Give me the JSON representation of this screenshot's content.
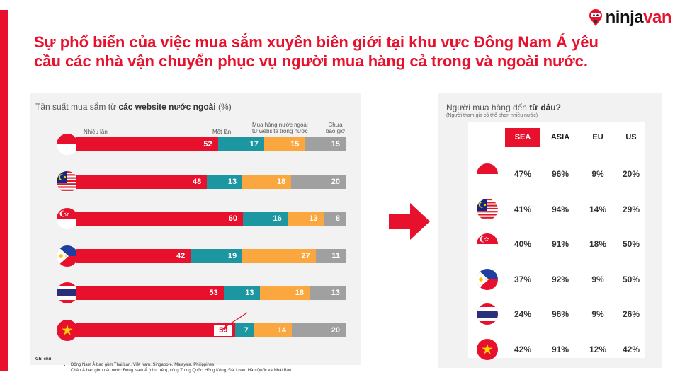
{
  "brand": {
    "logo_text_a": "ninja",
    "logo_text_b": "van",
    "accent_color": "#e8112d"
  },
  "headline": "Sự phổ biến của việc mua sắm xuyên biên giới tại khu vực Đông Nam Á yêu cầu các nhà vận chuyển phục vụ người mua hàng cả trong và ngoài nước.",
  "left_panel": {
    "title_prefix": "Tần suất mua sắm từ ",
    "title_bold": "các website nước ngoài",
    "title_suffix": " (%)",
    "col_many": "Nhiều lần",
    "col_once": "Một lần",
    "col_both_1": "Mua hàng nước ngoài",
    "col_both_2": "từ website trong nước",
    "col_never_1": "Chưa",
    "col_never_2": "bao giờ"
  },
  "right_panel": {
    "title_prefix": "Người mua hàng đến ",
    "title_bold": "từ đâu?",
    "subtitle": "(Người tham gia có thể chọn nhiều nước)",
    "headers": [
      "SEA",
      "ASIA",
      "EU",
      "US"
    ],
    "rows": [
      {
        "country": "indonesia",
        "values": [
          "47%",
          "96%",
          "9%",
          "20%"
        ]
      },
      {
        "country": "malaysia",
        "values": [
          "41%",
          "94%",
          "14%",
          "29%"
        ]
      },
      {
        "country": "singapore",
        "values": [
          "40%",
          "91%",
          "18%",
          "50%"
        ]
      },
      {
        "country": "philippines",
        "values": [
          "37%",
          "92%",
          "9%",
          "50%"
        ]
      },
      {
        "country": "thailand",
        "values": [
          "24%",
          "96%",
          "9%",
          "26%"
        ]
      },
      {
        "country": "vietnam",
        "values": [
          "42%",
          "91%",
          "12%",
          "42%"
        ]
      }
    ]
  },
  "notes": {
    "title": "Ghi chú:",
    "items": [
      "Đông Nam Á bao gồm Thái Lan, Việt Nam, Singapore, Malaysia, Philippines",
      "Châu Á bao gồm các nước Đông Nam Á (như trên), cùng Trung Quốc, Hồng Kông, Đài Loan, Hàn Quốc và Nhật Bản"
    ]
  },
  "chart_data": {
    "type": "bar",
    "stacked": true,
    "orientation": "horizontal",
    "title": "Tần suất mua sắm từ các website nước ngoài (%)",
    "categories": [
      "indonesia",
      "malaysia",
      "singapore",
      "philippines",
      "thailand",
      "vietnam"
    ],
    "series": [
      {
        "name": "Nhiều lần",
        "color": "#e8112d",
        "values": [
          52,
          48,
          60,
          42,
          53,
          59
        ]
      },
      {
        "name": "Một lần",
        "color": "#1c96a0",
        "values": [
          17,
          13,
          16,
          19,
          13,
          7
        ]
      },
      {
        "name": "Mua hàng nước ngoài từ website trong nước",
        "color": "#f9a73e",
        "values": [
          15,
          18,
          13,
          27,
          18,
          14
        ]
      },
      {
        "name": "Chưa bao giờ",
        "color": "#a0a0a0",
        "values": [
          15,
          20,
          8,
          11,
          13,
          20
        ]
      }
    ],
    "highlight_category": "vietnam"
  }
}
